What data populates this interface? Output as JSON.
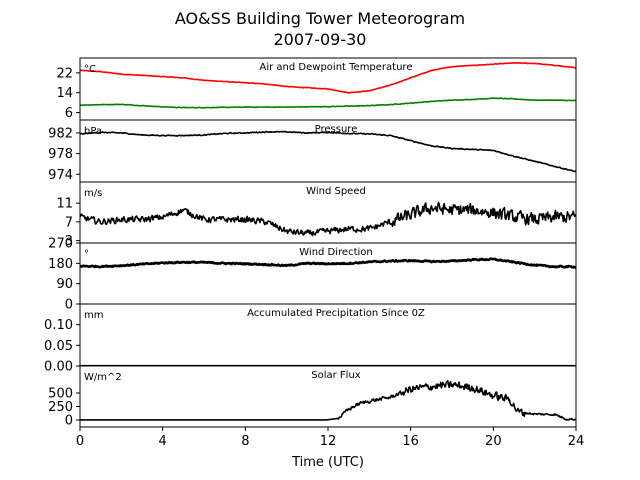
{
  "chart_data": {
    "type": "line",
    "title": "AO&SS Building Tower Meteorogram",
    "subtitle": "2007-09-30",
    "xlabel": "Time (UTC)",
    "xlim": [
      0,
      24
    ],
    "xticks": [
      0,
      4,
      8,
      12,
      16,
      20,
      24
    ],
    "panels": [
      {
        "title": "Air and Dewpoint Temperature",
        "unit": "°C",
        "ylim": [
          3,
          28
        ],
        "yticks": [
          6,
          14,
          22
        ],
        "series": [
          {
            "color": "#ff0000",
            "noise": 0.15,
            "x": [
              0,
              1,
              2,
              3,
              4,
              5,
              6,
              7,
              8,
              9,
              10,
              11,
              12,
              13,
              14,
              15,
              16,
              17,
              18,
              19,
              20,
              21,
              22,
              23,
              24
            ],
            "values": [
              23,
              22.5,
              21.5,
              21,
              20.5,
              20,
              19,
              18.5,
              18,
              17.5,
              16.5,
              16,
              15.5,
              14,
              14.8,
              17,
              20,
              23,
              24.5,
              25,
              25.5,
              26,
              25.8,
              25,
              24
            ]
          },
          {
            "color": "#008000",
            "noise": 0.15,
            "x": [
              0,
              1,
              2,
              3,
              4,
              5,
              6,
              7,
              8,
              9,
              10,
              11,
              12,
              13,
              14,
              15,
              16,
              17,
              18,
              19,
              20,
              21,
              22,
              23,
              24
            ],
            "values": [
              9,
              9.2,
              9.3,
              8.8,
              8.3,
              8,
              8,
              8.1,
              8.2,
              8.2,
              8.2,
              8.3,
              8.4,
              8.6,
              8.8,
              9.2,
              9.8,
              10.5,
              11,
              11.3,
              11.8,
              11.5,
              11,
              11,
              10.8
            ]
          }
        ]
      },
      {
        "title": "Pressure",
        "unit": "hPa",
        "ylim": [
          972.5,
          984.5
        ],
        "yticks": [
          974,
          978,
          982
        ],
        "series": [
          {
            "color": "#000000",
            "noise": 0.12,
            "x": [
              0,
              1,
              2,
              3,
              4,
              5,
              6,
              7,
              8,
              9,
              10,
              11,
              12,
              13,
              14,
              15,
              16,
              17,
              18,
              19,
              20,
              21,
              22,
              23,
              24
            ],
            "values": [
              981.8,
              982.1,
              982,
              981.6,
              981.5,
              981.5,
              981.6,
              981.9,
              982,
              982.2,
              982.2,
              982,
              982.1,
              981.9,
              981.8,
              981.5,
              980.5,
              979.5,
              979,
              978.8,
              978.6,
              977.5,
              976.5,
              975.5,
              974.5
            ]
          }
        ]
      },
      {
        "title": "Wind Speed",
        "unit": "m/s",
        "ylim": [
          2.5,
          15.5
        ],
        "yticks": [
          3,
          7,
          11
        ],
        "series": [
          {
            "color": "#000000",
            "noise": 1.3,
            "noise_x": [
              [
                0,
                11,
                0.9
              ],
              [
                11,
                15,
                0.9
              ],
              [
                15,
                24,
                1.8
              ]
            ],
            "x": [
              0,
              1,
              2,
              3,
              4,
              5,
              6,
              7,
              8,
              9,
              10,
              11,
              12,
              13,
              14,
              15,
              16,
              17,
              18,
              19,
              20,
              21,
              22,
              23,
              24
            ],
            "values": [
              8,
              7,
              7.5,
              7.5,
              8,
              9.5,
              7.5,
              7.5,
              7.5,
              7,
              5,
              4.5,
              5,
              5.5,
              5.5,
              7,
              8.5,
              10,
              9.5,
              9.5,
              9,
              8,
              7.5,
              8,
              8
            ]
          }
        ]
      },
      {
        "title": "Wind Direction",
        "unit": "°",
        "ylim": [
          0,
          270
        ],
        "yticks": [
          0,
          90,
          180,
          270
        ],
        "series": [
          {
            "color": "#000000",
            "noise": 4,
            "thick": 2.6,
            "x": [
              0,
              1,
              2,
              3,
              4,
              5,
              6,
              7,
              8,
              9,
              10,
              11,
              12,
              13,
              14,
              15,
              16,
              17,
              18,
              19,
              20,
              21,
              22,
              23,
              24
            ],
            "values": [
              168,
              166,
              170,
              176,
              182,
              185,
              184,
              180,
              178,
              175,
              170,
              180,
              178,
              180,
              186,
              190,
              192,
              188,
              190,
              196,
              198,
              185,
              172,
              165,
              165
            ]
          }
        ]
      },
      {
        "title": "Accumulated Precipitation Since 0Z",
        "unit": "mm",
        "ylim": [
          0,
          0.15
        ],
        "yticks": [
          0.0,
          0.05,
          0.1
        ],
        "ytick_labels": [
          "0.00",
          "0.05",
          "0.10"
        ],
        "series": [
          {
            "color": "#000000",
            "noise": 0,
            "thick": 2.2,
            "x": [
              0,
              24
            ],
            "values": [
              0,
              0
            ]
          }
        ]
      },
      {
        "title": "Solar Flux",
        "unit": "W/m^2",
        "ylim": [
          -130,
          1000
        ],
        "yticks": [
          0,
          250,
          500
        ],
        "series": [
          {
            "color": "#000000",
            "noise": 70,
            "noise_x": [
              [
                0,
                12.5,
                0
              ],
              [
                12.5,
                15.5,
                45
              ],
              [
                15.5,
                21.5,
                100
              ],
              [
                21.5,
                24,
                25
              ]
            ],
            "x": [
              0,
              5,
              10,
              11.9,
              12.5,
              13,
              13.5,
              14,
              15,
              16,
              17,
              18,
              19,
              20,
              20.8,
              21.2,
              22,
              23,
              23.5,
              24
            ],
            "values": [
              0,
              0,
              0,
              0,
              30,
              200,
              300,
              350,
              420,
              570,
              620,
              650,
              600,
              450,
              380,
              150,
              110,
              100,
              20,
              10
            ]
          }
        ]
      }
    ]
  }
}
